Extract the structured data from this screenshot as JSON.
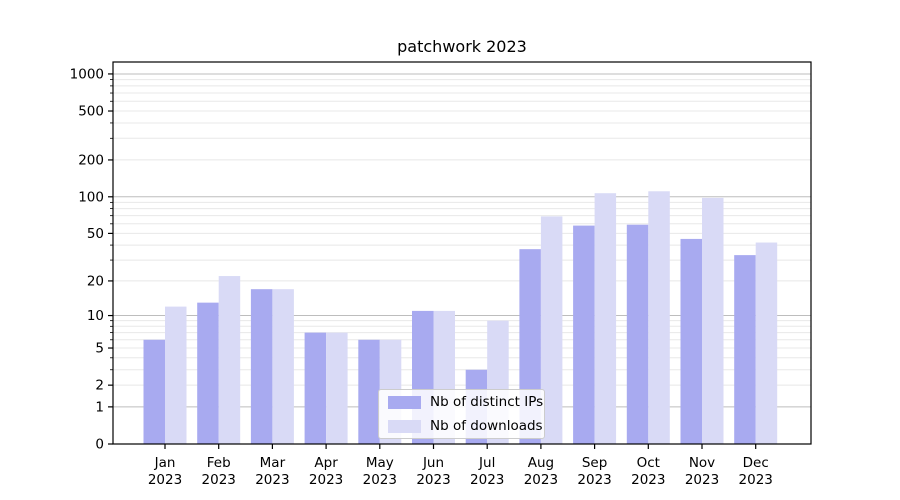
{
  "chart_data": {
    "type": "bar",
    "title": "patchwork 2023",
    "categories": [
      "Jan",
      "Feb",
      "Mar",
      "Apr",
      "May",
      "Jun",
      "Jul",
      "Aug",
      "Sep",
      "Oct",
      "Nov",
      "Dec"
    ],
    "x_year_label": "2023",
    "series": [
      {
        "name": "Nb of distinct IPs",
        "color": "#a8aaf0",
        "values": [
          6,
          13,
          17,
          7,
          6,
          11,
          3,
          37,
          58,
          59,
          45,
          33
        ]
      },
      {
        "name": "Nb of downloads",
        "color": "#d9daf6",
        "values": [
          12,
          22,
          17,
          7,
          6,
          11,
          9,
          69,
          107,
          111,
          98,
          42
        ]
      }
    ],
    "xlabel": "",
    "ylabel": "",
    "y_scale": "log1p",
    "ylim": [
      0,
      1250
    ],
    "y_ticks": [
      0,
      1,
      2,
      5,
      10,
      20,
      50,
      100,
      200,
      500,
      1000
    ],
    "grid": "horizontal, major and minor, on",
    "legend_position": "lower center inside plot",
    "colors": {
      "major_gridline": "#bdbdbd",
      "minor_gridline": "#e8e8e8",
      "spine": "#000000",
      "text": "#000000",
      "background": "#ffffff"
    }
  }
}
